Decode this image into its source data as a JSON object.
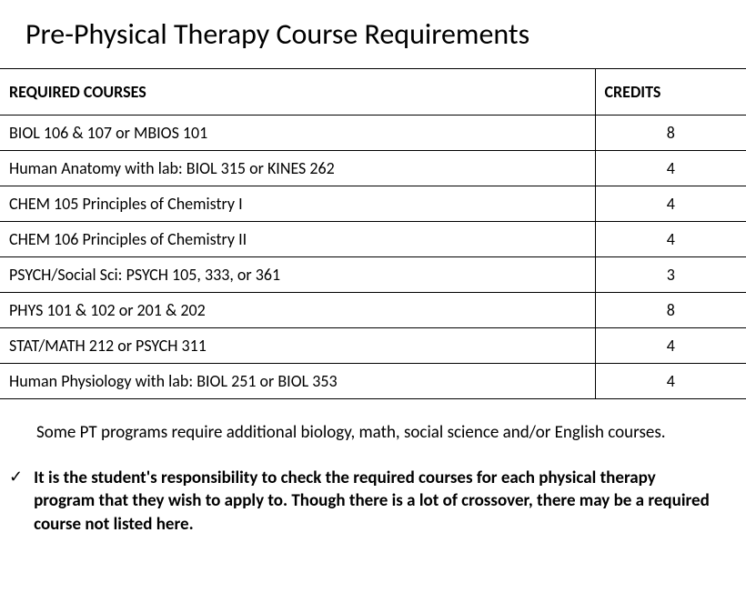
{
  "title": "Pre-Physical Therapy Course Requirements",
  "table": {
    "headers": {
      "course": "REQUIRED COURSES",
      "credits": "CREDITS"
    },
    "rows": [
      {
        "course": "BIOL 106 & 107 or MBIOS 101",
        "credits": "8"
      },
      {
        "course": "Human Anatomy with lab: BIOL 315 or KINES 262",
        "credits": "4"
      },
      {
        "course": "CHEM 105 Principles of Chemistry I",
        "credits": "4"
      },
      {
        "course": "CHEM 106 Principles of Chemistry II",
        "credits": "4"
      },
      {
        "course": "PSYCH/Social Sci: PSYCH 105, 333, or 361",
        "credits": "3"
      },
      {
        "course": "PHYS 101 & 102 or 201 & 202",
        "credits": "8"
      },
      {
        "course": "STAT/MATH 212 or PSYCH 311",
        "credits": "4"
      },
      {
        "course": "Human Physiology with lab: BIOL 251 or BIOL 353",
        "credits": "4"
      }
    ]
  },
  "notes": {
    "note1": "Some PT programs require additional biology, math, social science and/or English courses.",
    "checkmark": "✓",
    "note2": "It is the student's responsibility to check the required courses for each physical therapy program that they wish to apply to. Though there is a lot of crossover, there may be a required course not listed here."
  }
}
